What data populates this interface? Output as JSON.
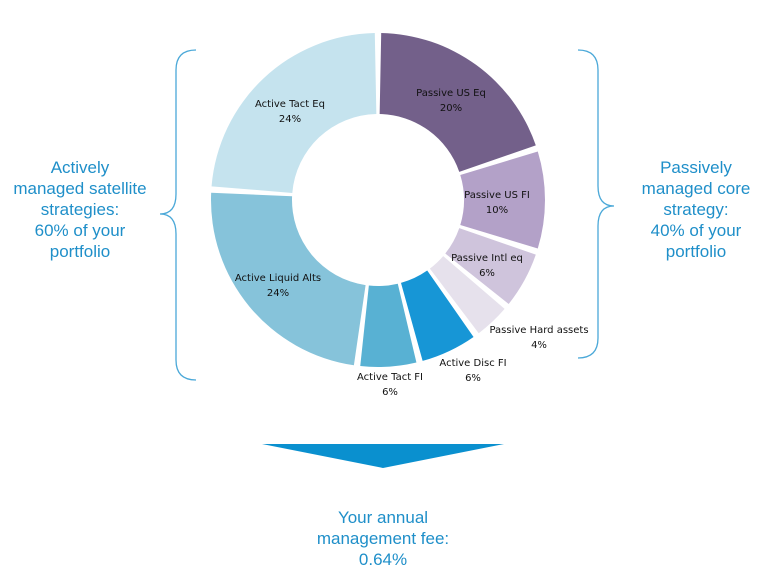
{
  "chart_data": {
    "type": "pie",
    "style": "donut",
    "slices": [
      {
        "label": "Passive US Eq",
        "pct_label": "20%",
        "value": 20,
        "color": "#73608a"
      },
      {
        "label": "Passive US FI",
        "pct_label": "10%",
        "value": 10,
        "color": "#b3a1c8"
      },
      {
        "label": "Passive Intl eq",
        "pct_label": "6%",
        "value": 6,
        "color": "#cfc4dc"
      },
      {
        "label": "Passive Hard assets",
        "pct_label": "4%",
        "value": 4,
        "color": "#e6e1ec"
      },
      {
        "label": "Active Disc FI",
        "pct_label": "6%",
        "value": 6,
        "color": "#1796d6"
      },
      {
        "label": "Active Tact FI",
        "pct_label": "6%",
        "value": 6,
        "color": "#58b1d3"
      },
      {
        "label": "Active Liquid Alts",
        "pct_label": "24%",
        "value": 24,
        "color": "#86c3da"
      },
      {
        "label": "Active Tact Eq",
        "pct_label": "24%",
        "value": 24,
        "color": "#c5e3ee"
      }
    ]
  },
  "left_caption": [
    "Actively",
    "managed satellite",
    "strategies:",
    "60% of your",
    "portfolio"
  ],
  "right_caption": [
    "Passively",
    "managed core",
    "strategy:",
    "40% of your",
    "portfolio"
  ],
  "fee_caption": [
    "Your annual",
    "management fee:",
    "0.64%"
  ],
  "colors": {
    "text_accent": "#1f8fc9",
    "brace": "#4aa8d8",
    "arrow": "#0a90cf"
  }
}
